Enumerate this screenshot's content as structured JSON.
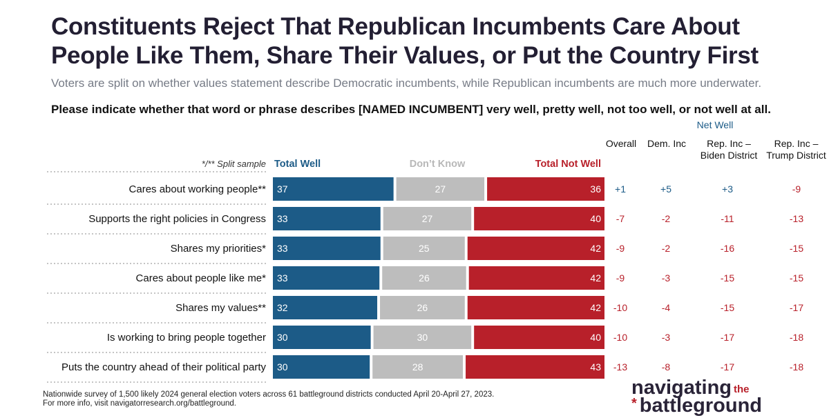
{
  "header": {
    "title": "Constituents Reject That Republican Incumbents Care About People Like Them, Share Their Values, or Put the Country First",
    "subtitle": "Voters are split on whether values statement describe Democratic incumbents, while Republican incumbents are much more underwater.",
    "question": "Please indicate whether that word or phrase describes [NAMED INCUMBENT] very well, pretty well, not too well, or not well at all."
  },
  "legend": {
    "split_note": "*/** Split sample",
    "total_well": "Total Well",
    "dont_know": "Don’t Know",
    "total_not_well": "Total Not Well"
  },
  "net_well": {
    "label": "Net Well",
    "columns": [
      "Overall",
      "Dem. Inc",
      "Rep. Inc – Biden District",
      "Rep. Inc – Trump District"
    ]
  },
  "chart_data": {
    "type": "bar",
    "orientation": "horizontal-stacked",
    "categories": [
      "Cares about working people**",
      "Supports the right policies in Congress",
      "Shares my priorities*",
      "Cares about people like me*",
      "Shares my values**",
      "Is working to bring people together",
      "Puts the country ahead of their political party"
    ],
    "series": [
      {
        "name": "Total Well",
        "color": "#1c5b87",
        "values": [
          37,
          33,
          33,
          33,
          32,
          30,
          30
        ]
      },
      {
        "name": "Don’t Know",
        "color": "#bdbdbd",
        "values": [
          27,
          27,
          25,
          26,
          26,
          30,
          28
        ]
      },
      {
        "name": "Total Not Well",
        "color": "#b8202a",
        "values": [
          36,
          40,
          42,
          42,
          42,
          40,
          43
        ]
      }
    ],
    "net_well": {
      "Overall": [
        "+1",
        "-7",
        "-9",
        "-9",
        "-10",
        "-10",
        "-13"
      ],
      "Dem. Inc": [
        "+5",
        "-2",
        "-2",
        "-3",
        "-4",
        "-3",
        "-8"
      ],
      "Rep. Inc – Biden District": [
        "+3",
        "-11",
        "-16",
        "-15",
        "-15",
        "-17",
        "-17"
      ],
      "Rep. Inc – Trump District": [
        "-9",
        "-13",
        "-15",
        "-15",
        "-17",
        "-18",
        "-18"
      ]
    },
    "colors": {
      "positive": "#1c5b87",
      "negative": "#b8202a"
    }
  },
  "footnote": {
    "line1": "Nationwide survey of 1,500 likely 2024 general election voters across 61 battleground districts conducted April 20-April 27, 2023.",
    "line2": "For more info, visit navigatorresearch.org/battleground."
  },
  "logo": {
    "word1": "navigating",
    "word_the": "the",
    "word2": "battleground",
    "star": "*"
  }
}
